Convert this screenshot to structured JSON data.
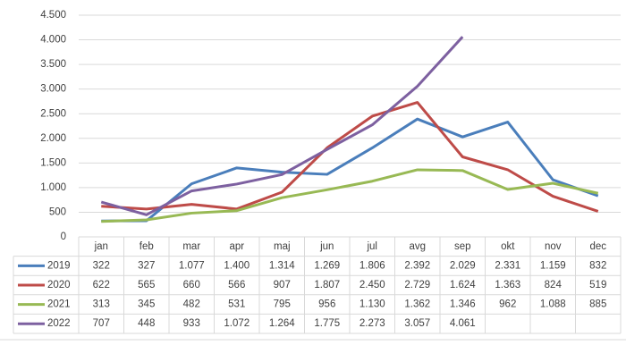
{
  "chart_data": {
    "type": "line",
    "categories": [
      "jan",
      "feb",
      "mar",
      "apr",
      "maj",
      "jun",
      "jul",
      "avg",
      "sep",
      "okt",
      "nov",
      "dec"
    ],
    "ylim": [
      0,
      4500
    ],
    "yticks": [
      0,
      500,
      {
        "value": 1000,
        "label": "1.000"
      },
      {
        "value": 1500,
        "label": "1.500"
      },
      {
        "value": 2000,
        "label": "2.000"
      },
      {
        "value": 2500,
        "label": "2.500"
      },
      {
        "value": 3000,
        "label": "3.000"
      },
      {
        "value": 3500,
        "label": "3.500"
      },
      {
        "value": 4000,
        "label": "4.000"
      },
      {
        "value": 4500,
        "label": "4.500"
      }
    ],
    "grid": true,
    "series": [
      {
        "name": "2019",
        "color": "#4a7ebb",
        "values": [
          322,
          327,
          1077,
          1400,
          1314,
          1269,
          1806,
          2392,
          2029,
          2331,
          1159,
          832
        ],
        "value_labels": [
          "322",
          "327",
          "1.077",
          "1.400",
          "1.314",
          "1.269",
          "1.806",
          "2.392",
          "2.029",
          "2.331",
          "1.159",
          "832"
        ]
      },
      {
        "name": "2020",
        "color": "#be4b48",
        "values": [
          622,
          565,
          660,
          566,
          907,
          1807,
          2450,
          2729,
          1624,
          1363,
          824,
          519
        ],
        "value_labels": [
          "622",
          "565",
          "660",
          "566",
          "907",
          "1.807",
          "2.450",
          "2.729",
          "1.624",
          "1.363",
          "824",
          "519"
        ]
      },
      {
        "name": "2021",
        "color": "#98b954",
        "values": [
          313,
          345,
          482,
          531,
          795,
          956,
          1130,
          1362,
          1346,
          962,
          1088,
          885
        ],
        "value_labels": [
          "313",
          "345",
          "482",
          "531",
          "795",
          "956",
          "1.130",
          "1.362",
          "1.346",
          "962",
          "1.088",
          "885"
        ]
      },
      {
        "name": "2022",
        "color": "#7d60a0",
        "values": [
          707,
          448,
          933,
          1072,
          1264,
          1775,
          2273,
          3057,
          4061,
          null,
          null,
          null
        ],
        "value_labels": [
          "707",
          "448",
          "933",
          "1.072",
          "1.264",
          "1.775",
          "2.273",
          "3.057",
          "4.061",
          null,
          null,
          null
        ]
      }
    ]
  }
}
